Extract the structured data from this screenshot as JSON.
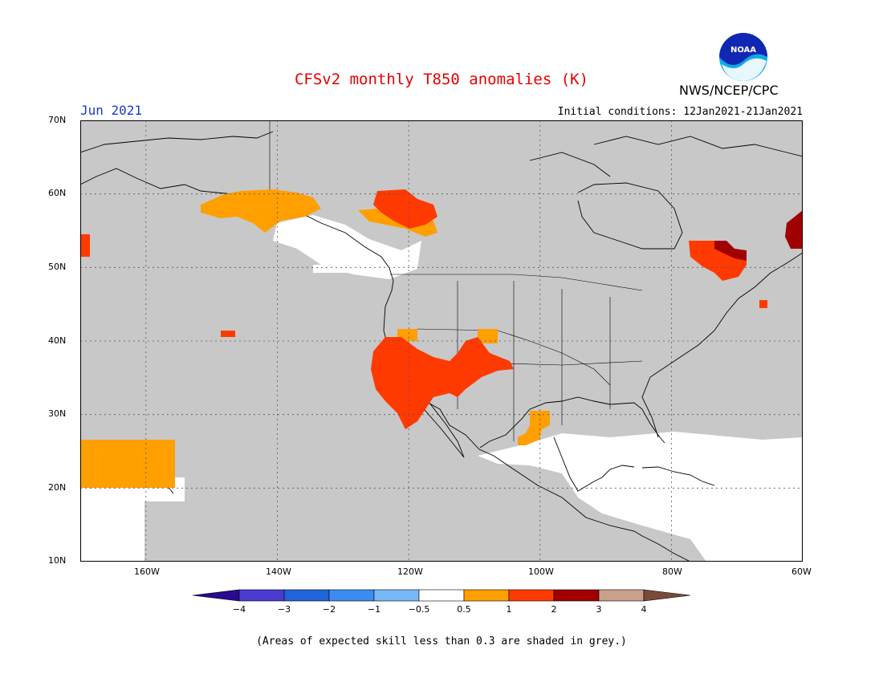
{
  "header": {
    "title": "CFSv2 monthly T850 anomalies (K)",
    "month": "Jun 2021",
    "initial_conditions": "Initial conditions: 12Jan2021-21Jan2021",
    "agency": "NWS/NCEP/CPC",
    "logo_text": "NOAA"
  },
  "map": {
    "lon_range": [
      -170,
      -60
    ],
    "lat_range": [
      10,
      70
    ],
    "lat_labels": [
      "70N",
      "60N",
      "50N",
      "40N",
      "30N",
      "20N",
      "10N"
    ],
    "lon_labels": [
      "160W",
      "140W",
      "120W",
      "100W",
      "80W",
      "60W"
    ],
    "colors": {
      "low_skill_grey": "#c8c8c8",
      "anom_0_5_to_1": "#ff9f00",
      "anom_1_to_2": "#ff3a00",
      "anom_2_to_3": "#a00000",
      "land_line": "#000000"
    }
  },
  "colorbar": {
    "labels": [
      "−4",
      "−3",
      "−2",
      "−1",
      "−0.5",
      "0.5",
      "1",
      "2",
      "3",
      "4"
    ],
    "colors": [
      "#2a0a90",
      "#4a3cd0",
      "#1f64d8",
      "#3c8cf0",
      "#78b8f8",
      "#ffffff",
      "#ff9f00",
      "#ff3a00",
      "#a00000",
      "#c8a08c",
      "#7a4a3a"
    ]
  },
  "footnote": "(Areas of expected skill less than 0.3 are shaded in grey.)"
}
